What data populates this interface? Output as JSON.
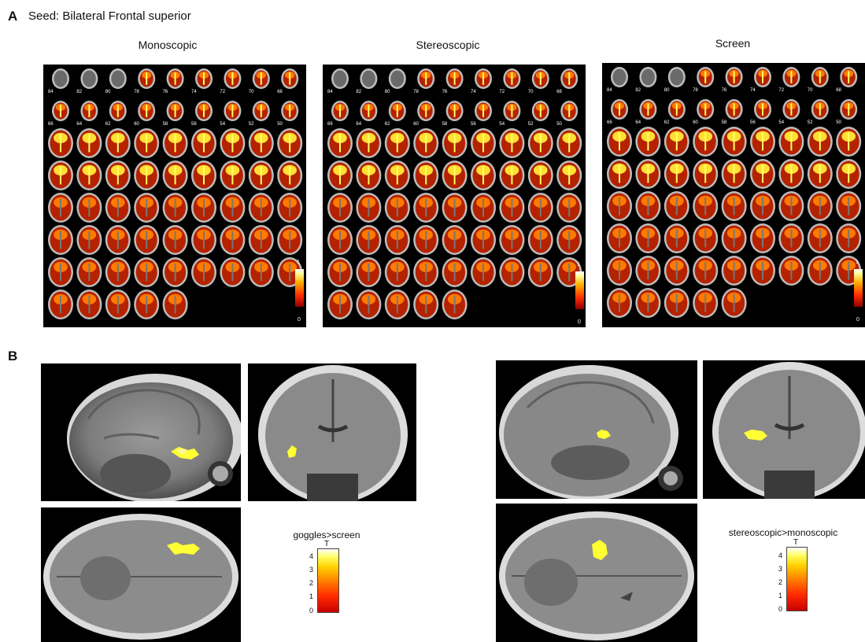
{
  "panel_a": {
    "letter": "A",
    "title": "Seed: Bilateral Frontal superior",
    "columns": [
      {
        "label": "Monoscopic",
        "scale_max": "1",
        "scale_min": "0"
      },
      {
        "label": "Stereoscopic",
        "scale_max": "1",
        "scale_min": "0"
      },
      {
        "label": "Screen",
        "scale_max": "1",
        "scale_min": "0"
      }
    ],
    "row1_slice_numbers": [
      "84",
      "82",
      "80",
      "78",
      "76",
      "74",
      "72",
      "70",
      "68"
    ],
    "row2_slice_numbers": [
      "66",
      "64",
      "62",
      "60",
      "58",
      "56",
      "54",
      "52",
      "50"
    ]
  },
  "panel_b": {
    "letter": "B",
    "contrasts": [
      {
        "label": "goggles>screen",
        "scale_unit": "T",
        "ticks": [
          "4",
          "3",
          "2",
          "1",
          "0"
        ]
      },
      {
        "label": "stereoscopic>monoscopic",
        "scale_unit": "T",
        "ticks": [
          "4",
          "3",
          "2",
          "1",
          "0"
        ]
      }
    ]
  },
  "colors": {
    "activation_hot": "#ff2a00",
    "activation_peak": "#ffff33",
    "background": "#000000"
  }
}
